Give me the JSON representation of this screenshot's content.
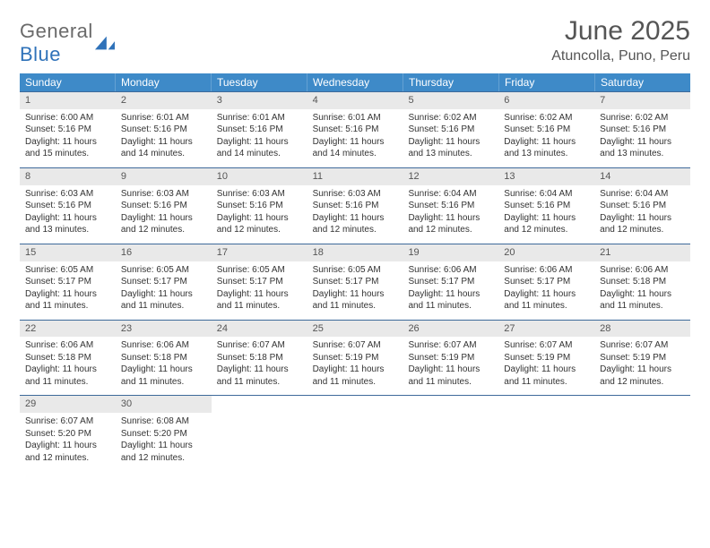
{
  "logo": {
    "text_left": "General",
    "text_right": "Blue"
  },
  "title": "June 2025",
  "location": "Atuncolla, Puno, Peru",
  "colors": {
    "header_bg": "#3e8ac8",
    "header_text": "#ffffff",
    "week_divider": "#3e6a9a",
    "daynum_bg": "#e9e9e9",
    "body_text": "#333333",
    "title_text": "#555555",
    "logo_gray": "#6a6a6a",
    "logo_blue": "#2f72b9"
  },
  "dow": [
    "Sunday",
    "Monday",
    "Tuesday",
    "Wednesday",
    "Thursday",
    "Friday",
    "Saturday"
  ],
  "weeks": [
    [
      {
        "n": "1",
        "sunrise": "6:00 AM",
        "sunset": "5:16 PM",
        "dl": "11 hours and 15 minutes."
      },
      {
        "n": "2",
        "sunrise": "6:01 AM",
        "sunset": "5:16 PM",
        "dl": "11 hours and 14 minutes."
      },
      {
        "n": "3",
        "sunrise": "6:01 AM",
        "sunset": "5:16 PM",
        "dl": "11 hours and 14 minutes."
      },
      {
        "n": "4",
        "sunrise": "6:01 AM",
        "sunset": "5:16 PM",
        "dl": "11 hours and 14 minutes."
      },
      {
        "n": "5",
        "sunrise": "6:02 AM",
        "sunset": "5:16 PM",
        "dl": "11 hours and 13 minutes."
      },
      {
        "n": "6",
        "sunrise": "6:02 AM",
        "sunset": "5:16 PM",
        "dl": "11 hours and 13 minutes."
      },
      {
        "n": "7",
        "sunrise": "6:02 AM",
        "sunset": "5:16 PM",
        "dl": "11 hours and 13 minutes."
      }
    ],
    [
      {
        "n": "8",
        "sunrise": "6:03 AM",
        "sunset": "5:16 PM",
        "dl": "11 hours and 13 minutes."
      },
      {
        "n": "9",
        "sunrise": "6:03 AM",
        "sunset": "5:16 PM",
        "dl": "11 hours and 12 minutes."
      },
      {
        "n": "10",
        "sunrise": "6:03 AM",
        "sunset": "5:16 PM",
        "dl": "11 hours and 12 minutes."
      },
      {
        "n": "11",
        "sunrise": "6:03 AM",
        "sunset": "5:16 PM",
        "dl": "11 hours and 12 minutes."
      },
      {
        "n": "12",
        "sunrise": "6:04 AM",
        "sunset": "5:16 PM",
        "dl": "11 hours and 12 minutes."
      },
      {
        "n": "13",
        "sunrise": "6:04 AM",
        "sunset": "5:16 PM",
        "dl": "11 hours and 12 minutes."
      },
      {
        "n": "14",
        "sunrise": "6:04 AM",
        "sunset": "5:16 PM",
        "dl": "11 hours and 12 minutes."
      }
    ],
    [
      {
        "n": "15",
        "sunrise": "6:05 AM",
        "sunset": "5:17 PM",
        "dl": "11 hours and 11 minutes."
      },
      {
        "n": "16",
        "sunrise": "6:05 AM",
        "sunset": "5:17 PM",
        "dl": "11 hours and 11 minutes."
      },
      {
        "n": "17",
        "sunrise": "6:05 AM",
        "sunset": "5:17 PM",
        "dl": "11 hours and 11 minutes."
      },
      {
        "n": "18",
        "sunrise": "6:05 AM",
        "sunset": "5:17 PM",
        "dl": "11 hours and 11 minutes."
      },
      {
        "n": "19",
        "sunrise": "6:06 AM",
        "sunset": "5:17 PM",
        "dl": "11 hours and 11 minutes."
      },
      {
        "n": "20",
        "sunrise": "6:06 AM",
        "sunset": "5:17 PM",
        "dl": "11 hours and 11 minutes."
      },
      {
        "n": "21",
        "sunrise": "6:06 AM",
        "sunset": "5:18 PM",
        "dl": "11 hours and 11 minutes."
      }
    ],
    [
      {
        "n": "22",
        "sunrise": "6:06 AM",
        "sunset": "5:18 PM",
        "dl": "11 hours and 11 minutes."
      },
      {
        "n": "23",
        "sunrise": "6:06 AM",
        "sunset": "5:18 PM",
        "dl": "11 hours and 11 minutes."
      },
      {
        "n": "24",
        "sunrise": "6:07 AM",
        "sunset": "5:18 PM",
        "dl": "11 hours and 11 minutes."
      },
      {
        "n": "25",
        "sunrise": "6:07 AM",
        "sunset": "5:19 PM",
        "dl": "11 hours and 11 minutes."
      },
      {
        "n": "26",
        "sunrise": "6:07 AM",
        "sunset": "5:19 PM",
        "dl": "11 hours and 11 minutes."
      },
      {
        "n": "27",
        "sunrise": "6:07 AM",
        "sunset": "5:19 PM",
        "dl": "11 hours and 11 minutes."
      },
      {
        "n": "28",
        "sunrise": "6:07 AM",
        "sunset": "5:19 PM",
        "dl": "11 hours and 12 minutes."
      }
    ],
    [
      {
        "n": "29",
        "sunrise": "6:07 AM",
        "sunset": "5:20 PM",
        "dl": "11 hours and 12 minutes."
      },
      {
        "n": "30",
        "sunrise": "6:08 AM",
        "sunset": "5:20 PM",
        "dl": "11 hours and 12 minutes."
      },
      null,
      null,
      null,
      null,
      null
    ]
  ],
  "labels": {
    "sunrise": "Sunrise: ",
    "sunset": "Sunset: ",
    "daylight": "Daylight: "
  }
}
